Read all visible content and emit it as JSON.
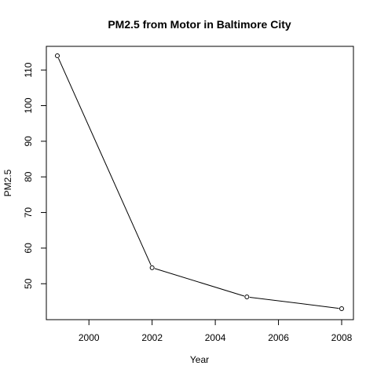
{
  "chart_data": {
    "type": "line",
    "title": "PM2.5 from Motor in Baltimore City",
    "xlabel": "Year",
    "ylabel": "PM2.5",
    "x": [
      1999,
      2002,
      2005,
      2008
    ],
    "y": [
      114.0,
      54.5,
      46.3,
      43.0
    ],
    "xlim": [
      1999,
      2008
    ],
    "ylim": [
      43.0,
      114.0
    ],
    "xticks": [
      2000,
      2002,
      2004,
      2006,
      2008
    ],
    "yticks": [
      50,
      60,
      70,
      80,
      90,
      100,
      110
    ],
    "marker": "open-circle",
    "grid": false,
    "line_color": "#000000"
  }
}
